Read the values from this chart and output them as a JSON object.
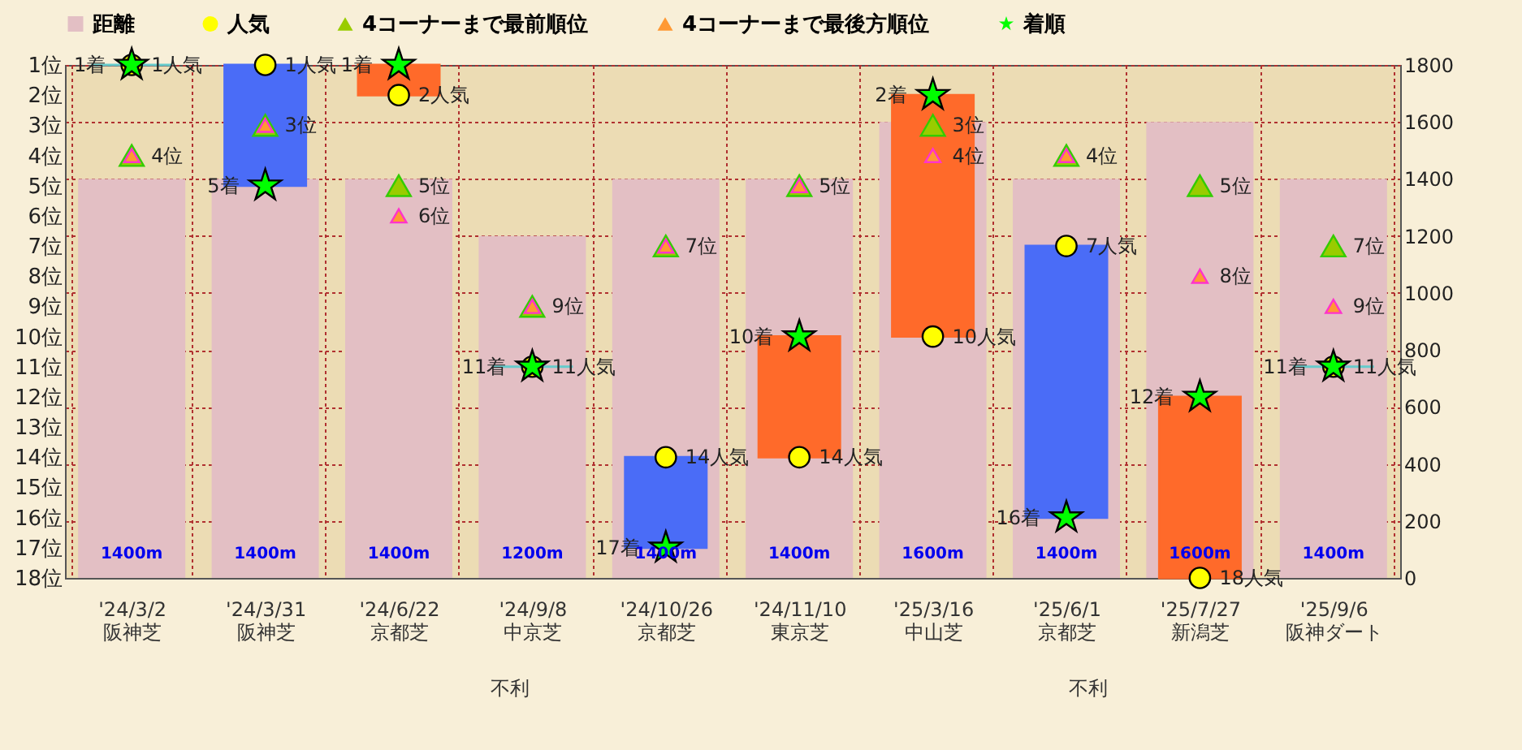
{
  "chart_data": {
    "type": "bar",
    "categories": [
      "'24/3/2\n阪神芝",
      "'24/3/31\n阪神芝",
      "'24/6/22\n京都芝",
      "'24/9/8\n中京芝",
      "'24/10/26\n京都芝",
      "'24/11/10\n東京芝",
      "'25/3/16\n中山芝",
      "'25/6/1\n京都芝",
      "'25/7/27\n新潟芝",
      "'25/9/6\n阪神ダート"
    ],
    "ylim": [
      18,
      1
    ],
    "yticks": [
      {
        "value": 1,
        "label": "1位"
      },
      {
        "value": 2,
        "label": "2位"
      },
      {
        "value": 3,
        "label": "3位"
      },
      {
        "value": 4,
        "label": "4位"
      },
      {
        "value": 5,
        "label": "5位"
      },
      {
        "value": 6,
        "label": "6位"
      },
      {
        "value": 7,
        "label": "7位"
      },
      {
        "value": 8,
        "label": "8位"
      },
      {
        "value": 9,
        "label": "9位"
      },
      {
        "value": 10,
        "label": "10位"
      },
      {
        "value": 11,
        "label": "11位"
      },
      {
        "value": 12,
        "label": "12位"
      },
      {
        "value": 13,
        "label": "13位"
      },
      {
        "value": 14,
        "label": "14位"
      },
      {
        "value": 15,
        "label": "15位"
      },
      {
        "value": 16,
        "label": "16位"
      },
      {
        "value": 17,
        "label": "17位"
      },
      {
        "value": 18,
        "label": "18位"
      }
    ],
    "y2lim": [
      0,
      1800
    ],
    "y2ticks": [
      0,
      200,
      400,
      600,
      800,
      1000,
      1200,
      1400,
      1600,
      1800
    ],
    "grid": true,
    "legend": "top",
    "annotations": [
      "不利",
      "不利"
    ],
    "series": [
      {
        "name": "距離",
        "type": "bar",
        "axis": "y2",
        "color": "#e3bfc4",
        "values": [
          1400,
          1400,
          1400,
          1200,
          1400,
          1400,
          1600,
          1400,
          1600,
          1400
        ],
        "value_labels": [
          "1400m",
          "1400m",
          "1400m",
          "1200m",
          "1400m",
          "1400m",
          "1600m",
          "1400m",
          "1600m",
          "1400m"
        ]
      },
      {
        "type": "bar",
        "base": [
          1,
          1,
          1,
          11,
          14,
          10,
          2,
          7,
          12,
          11
        ],
        "values": [
          0,
          4,
          1,
          0,
          3,
          4,
          8,
          9,
          6,
          0
        ],
        "colors": [
          "#66cccc",
          "#4a6cf7",
          "#ff6a2a",
          "#66cccc",
          "#4a6cf7",
          "#ff6a2a",
          "#ff6a2a",
          "#4a6cf7",
          "#ff6a2a",
          "#66cccc"
        ]
      },
      {
        "name": "人気",
        "type": "scatter",
        "marker": "circle",
        "color": "#ffff00",
        "values": [
          1,
          1,
          2,
          11,
          14,
          14,
          10,
          7,
          18,
          11
        ],
        "value_labels": [
          "1人気",
          "1人気",
          "2人気",
          "11人気",
          "14人気",
          "14人気",
          "10人気",
          "7人気",
          "18人気",
          "11人気"
        ]
      },
      {
        "name": "4コーナーまで最前順位",
        "type": "scatter",
        "marker": "triangle",
        "color": "#99cc00",
        "values": [
          4,
          3,
          5,
          9,
          7,
          5,
          3,
          4,
          5,
          7
        ],
        "value_labels": [
          "4位",
          "3位",
          "5位",
          "9位",
          "7位",
          "5位",
          "3位",
          "4位",
          "5位",
          "7位"
        ]
      },
      {
        "name": "4コーナーまで最後方順位",
        "type": "scatter",
        "marker": "triangle",
        "color": "#ff9933",
        "values": [
          4,
          3,
          6,
          9,
          7,
          5,
          4,
          4,
          8,
          9
        ],
        "value_labels": [
          null,
          null,
          "6位",
          null,
          null,
          null,
          "4位",
          null,
          "8位",
          "9位"
        ]
      },
      {
        "name": "着順",
        "type": "scatter",
        "marker": "star",
        "color": "#00ff00",
        "values": [
          1,
          5,
          1,
          11,
          17,
          10,
          2,
          16,
          12,
          11
        ],
        "value_labels": [
          "1着",
          "5着",
          "1着",
          "11着",
          "17着",
          "10着",
          "2着",
          "16着",
          "12着",
          "11着"
        ]
      }
    ]
  }
}
